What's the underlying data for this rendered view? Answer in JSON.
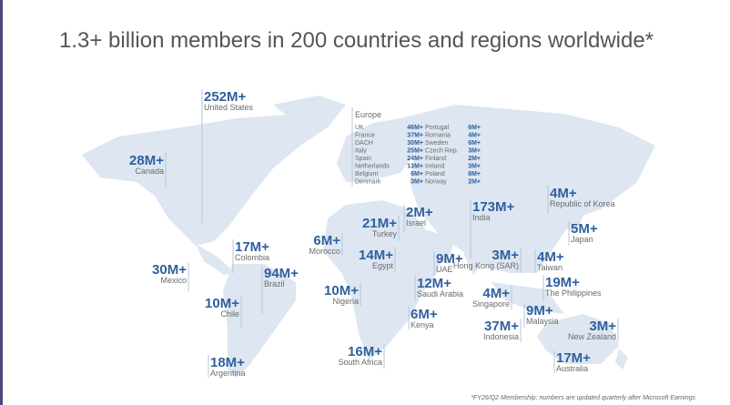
{
  "header": {
    "title": "1.3+ billion members in 200 countries and regions worldwide*"
  },
  "regions": [
    {
      "value": "252M+",
      "name": "United States"
    },
    {
      "value": "28M+",
      "name": "Canada"
    },
    {
      "value": "17M+",
      "name": "Colombia"
    },
    {
      "value": "30M+",
      "name": "Mexico"
    },
    {
      "value": "94M+",
      "name": "Brazil"
    },
    {
      "value": "10M+",
      "name": "Chile"
    },
    {
      "value": "18M+",
      "name": "Argentina"
    },
    {
      "value": "6M+",
      "name": "Morocco"
    },
    {
      "value": "21M+",
      "name": "Turkey"
    },
    {
      "value": "2M+",
      "name": "Israel"
    },
    {
      "value": "14M+",
      "name": "Egypt"
    },
    {
      "value": "10M+",
      "name": "Nigeria"
    },
    {
      "value": "9M+",
      "name": "UAE"
    },
    {
      "value": "12M+",
      "name": "Saudi Arabia"
    },
    {
      "value": "6M+",
      "name": "Kenya"
    },
    {
      "value": "16M+",
      "name": "South Africa"
    },
    {
      "value": "173M+",
      "name": "India"
    },
    {
      "value": "3M+",
      "name": "Hong Kong (SAR)"
    },
    {
      "value": "4M+",
      "name": "Singapore"
    },
    {
      "value": "37M+",
      "name": "Indonesia"
    },
    {
      "value": "9M+",
      "name": "Malaysia"
    },
    {
      "value": "4M+",
      "name": "Republic of Korea"
    },
    {
      "value": "5M+",
      "name": "Japan"
    },
    {
      "value": "4M+",
      "name": "Taiwan"
    },
    {
      "value": "19M+",
      "name": "The Philippines"
    },
    {
      "value": "3M+",
      "name": "New Zealand"
    },
    {
      "value": "17M+",
      "name": "Australia"
    }
  ],
  "europe": {
    "label": "Europe",
    "left": [
      {
        "name": "UK",
        "value": "46M+"
      },
      {
        "name": "France",
        "value": "37M+"
      },
      {
        "name": "DACH",
        "value": "30M+"
      },
      {
        "name": "Italy",
        "value": "25M+"
      },
      {
        "name": "Spain",
        "value": "24M+"
      },
      {
        "name": "Netherlands",
        "value": "13M+"
      },
      {
        "name": "Belgium",
        "value": "6M+"
      },
      {
        "name": "Denmark",
        "value": "3M+"
      }
    ],
    "right": [
      {
        "name": "Portugal",
        "value": "6M+"
      },
      {
        "name": "Romania",
        "value": "4M+"
      },
      {
        "name": "Sweden",
        "value": "6M+"
      },
      {
        "name": "Czech Rep.",
        "value": "3M+"
      },
      {
        "name": "Finland",
        "value": "2M+"
      },
      {
        "name": "Ireland",
        "value": "3M+"
      },
      {
        "name": "Poland",
        "value": "8M+"
      },
      {
        "name": "Norway",
        "value": "2M+"
      }
    ]
  },
  "footnote": "*FY26/Q2 Membership; numbers are updated quarterly after Microsoft Earnings"
}
